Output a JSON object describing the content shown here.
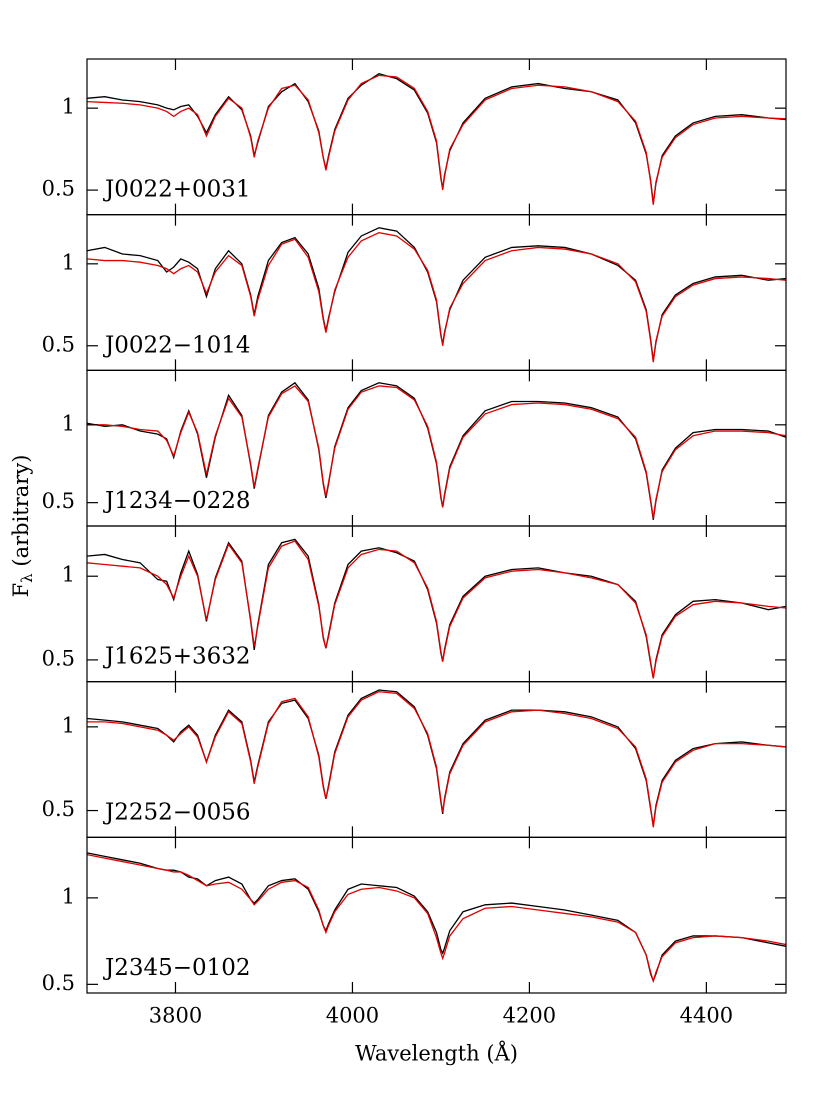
{
  "chart_data": [
    {
      "type": "line",
      "annotation": "J0022+0031",
      "ylabel": [
        "F",
        "λ",
        " (arbitrary)"
      ],
      "x": [
        3700,
        3720,
        3740,
        3760,
        3780,
        3790,
        3798,
        3806,
        3815,
        3825,
        3835,
        3845,
        3860,
        3875,
        3885,
        3889,
        3893,
        3905,
        3920,
        3935,
        3950,
        3962,
        3967,
        3970,
        3973,
        3980,
        3995,
        4010,
        4030,
        4050,
        4070,
        4085,
        4095,
        4100,
        4102,
        4104,
        4110,
        4125,
        4150,
        4180,
        4210,
        4240,
        4270,
        4300,
        4320,
        4332,
        4337,
        4340,
        4343,
        4350,
        4365,
        4385,
        4410,
        4440,
        4470,
        4490
      ],
      "xlim": [
        3700,
        4490
      ],
      "xticks": [
        3800,
        4000,
        4200,
        4400
      ],
      "ylim": [
        0.35,
        1.3
      ],
      "yticks": [
        0.5,
        1
      ],
      "series": [
        {
          "color": "#000000",
          "values": [
            1.06,
            1.07,
            1.05,
            1.04,
            1.02,
            1.0,
            0.99,
            1.01,
            1.02,
            0.95,
            0.85,
            0.96,
            1.07,
            0.99,
            0.83,
            0.71,
            0.79,
            1.01,
            1.1,
            1.15,
            1.04,
            0.86,
            0.7,
            0.63,
            0.71,
            0.87,
            1.06,
            1.14,
            1.21,
            1.18,
            1.11,
            0.97,
            0.79,
            0.57,
            0.51,
            0.59,
            0.74,
            0.91,
            1.06,
            1.13,
            1.15,
            1.12,
            1.1,
            1.05,
            0.91,
            0.72,
            0.56,
            0.42,
            0.54,
            0.71,
            0.83,
            0.91,
            0.95,
            0.96,
            0.94,
            0.93
          ]
        },
        {
          "color": "#e00000",
          "values": [
            1.04,
            1.035,
            1.03,
            1.02,
            1.0,
            0.98,
            0.95,
            0.98,
            1.0,
            0.96,
            0.83,
            0.95,
            1.06,
            1.0,
            0.82,
            0.7,
            0.8,
            1.0,
            1.12,
            1.14,
            1.05,
            0.85,
            0.7,
            0.62,
            0.7,
            0.86,
            1.05,
            1.15,
            1.2,
            1.19,
            1.12,
            0.98,
            0.8,
            0.58,
            0.5,
            0.58,
            0.75,
            0.9,
            1.05,
            1.12,
            1.14,
            1.13,
            1.1,
            1.04,
            0.92,
            0.73,
            0.55,
            0.41,
            0.55,
            0.7,
            0.82,
            0.9,
            0.94,
            0.95,
            0.94,
            0.935
          ]
        }
      ]
    },
    {
      "type": "line",
      "annotation": "J0022−1014",
      "x": [
        3700,
        3720,
        3740,
        3760,
        3780,
        3790,
        3798,
        3806,
        3815,
        3825,
        3835,
        3845,
        3860,
        3875,
        3885,
        3889,
        3893,
        3905,
        3920,
        3935,
        3950,
        3962,
        3967,
        3970,
        3973,
        3980,
        3995,
        4010,
        4030,
        4050,
        4070,
        4085,
        4095,
        4100,
        4102,
        4104,
        4110,
        4125,
        4150,
        4180,
        4210,
        4240,
        4270,
        4300,
        4320,
        4332,
        4337,
        4340,
        4343,
        4350,
        4365,
        4385,
        4410,
        4440,
        4470,
        4490
      ],
      "xlim": [
        3700,
        4490
      ],
      "xticks": [
        3800,
        4000,
        4200,
        4400
      ],
      "ylim": [
        0.35,
        1.3
      ],
      "yticks": [
        0.5,
        1
      ],
      "series": [
        {
          "color": "#000000",
          "values": [
            1.08,
            1.1,
            1.06,
            1.05,
            1.02,
            0.95,
            0.98,
            1.03,
            1.01,
            0.97,
            0.8,
            0.97,
            1.08,
            1.0,
            0.81,
            0.69,
            0.8,
            1.02,
            1.13,
            1.16,
            1.06,
            0.85,
            0.67,
            0.59,
            0.67,
            0.83,
            1.07,
            1.17,
            1.22,
            1.2,
            1.1,
            0.95,
            0.77,
            0.56,
            0.51,
            0.58,
            0.72,
            0.9,
            1.04,
            1.1,
            1.11,
            1.1,
            1.06,
            0.99,
            0.9,
            0.72,
            0.54,
            0.41,
            0.52,
            0.69,
            0.81,
            0.88,
            0.92,
            0.93,
            0.9,
            0.91
          ]
        },
        {
          "color": "#e00000",
          "values": [
            1.03,
            1.02,
            1.02,
            1.01,
            0.99,
            0.97,
            0.94,
            0.97,
            0.99,
            0.95,
            0.82,
            0.95,
            1.05,
            0.99,
            0.8,
            0.68,
            0.78,
            0.99,
            1.12,
            1.15,
            1.04,
            0.83,
            0.66,
            0.58,
            0.66,
            0.84,
            1.04,
            1.14,
            1.19,
            1.17,
            1.09,
            0.96,
            0.78,
            0.57,
            0.5,
            0.57,
            0.73,
            0.88,
            1.02,
            1.08,
            1.1,
            1.09,
            1.06,
            1.0,
            0.89,
            0.71,
            0.53,
            0.4,
            0.53,
            0.68,
            0.8,
            0.87,
            0.91,
            0.92,
            0.91,
            0.9
          ]
        }
      ]
    },
    {
      "type": "line",
      "annotation": "J1234−0228",
      "x": [
        3700,
        3720,
        3740,
        3760,
        3780,
        3790,
        3798,
        3806,
        3815,
        3825,
        3835,
        3845,
        3860,
        3875,
        3885,
        3889,
        3893,
        3905,
        3920,
        3935,
        3950,
        3962,
        3967,
        3970,
        3973,
        3980,
        3995,
        4010,
        4030,
        4050,
        4070,
        4085,
        4095,
        4100,
        4102,
        4104,
        4110,
        4125,
        4150,
        4180,
        4210,
        4240,
        4270,
        4300,
        4320,
        4332,
        4337,
        4340,
        4343,
        4350,
        4365,
        4385,
        4410,
        4440,
        4470,
        4490
      ],
      "xlim": [
        3700,
        4490
      ],
      "xticks": [
        3800,
        4000,
        4200,
        4400
      ],
      "ylim": [
        0.35,
        1.35
      ],
      "yticks": [
        0.5,
        1
      ],
      "series": [
        {
          "color": "#000000",
          "values": [
            1.01,
            0.99,
            1.0,
            0.96,
            0.94,
            0.91,
            0.79,
            0.96,
            1.09,
            0.94,
            0.66,
            0.92,
            1.19,
            1.06,
            0.74,
            0.59,
            0.71,
            1.06,
            1.21,
            1.27,
            1.16,
            0.84,
            0.62,
            0.53,
            0.62,
            0.86,
            1.11,
            1.22,
            1.27,
            1.25,
            1.17,
            0.98,
            0.75,
            0.53,
            0.47,
            0.55,
            0.73,
            0.93,
            1.09,
            1.15,
            1.15,
            1.14,
            1.11,
            1.05,
            0.91,
            0.69,
            0.51,
            0.39,
            0.51,
            0.71,
            0.85,
            0.95,
            0.97,
            0.97,
            0.96,
            0.92
          ]
        },
        {
          "color": "#e00000",
          "values": [
            1.0,
            1.0,
            0.99,
            0.97,
            0.96,
            0.9,
            0.8,
            0.95,
            1.08,
            0.95,
            0.68,
            0.93,
            1.17,
            1.05,
            0.75,
            0.6,
            0.72,
            1.05,
            1.2,
            1.25,
            1.15,
            0.85,
            0.63,
            0.54,
            0.63,
            0.85,
            1.1,
            1.21,
            1.25,
            1.24,
            1.16,
            0.99,
            0.76,
            0.54,
            0.47,
            0.54,
            0.72,
            0.92,
            1.07,
            1.13,
            1.14,
            1.13,
            1.1,
            1.04,
            0.92,
            0.7,
            0.52,
            0.4,
            0.52,
            0.7,
            0.84,
            0.93,
            0.96,
            0.96,
            0.95,
            0.93
          ]
        }
      ]
    },
    {
      "type": "line",
      "annotation": "J1625+3632",
      "x": [
        3700,
        3720,
        3740,
        3760,
        3780,
        3790,
        3798,
        3806,
        3815,
        3825,
        3835,
        3845,
        3860,
        3875,
        3885,
        3889,
        3893,
        3905,
        3920,
        3935,
        3950,
        3962,
        3967,
        3970,
        3973,
        3980,
        3995,
        4010,
        4030,
        4050,
        4070,
        4085,
        4095,
        4100,
        4102,
        4104,
        4110,
        4125,
        4150,
        4180,
        4210,
        4240,
        4270,
        4300,
        4320,
        4332,
        4337,
        4340,
        4343,
        4350,
        4365,
        4385,
        4410,
        4440,
        4470,
        4490
      ],
      "xlim": [
        3700,
        4490
      ],
      "xticks": [
        3800,
        4000,
        4200,
        4400
      ],
      "ylim": [
        0.37,
        1.3
      ],
      "yticks": [
        0.5,
        1
      ],
      "series": [
        {
          "color": "#000000",
          "values": [
            1.12,
            1.13,
            1.1,
            1.08,
            0.98,
            0.97,
            0.86,
            1.02,
            1.15,
            1.01,
            0.73,
            0.99,
            1.2,
            1.09,
            0.73,
            0.56,
            0.71,
            1.07,
            1.2,
            1.22,
            1.12,
            0.83,
            0.63,
            0.57,
            0.65,
            0.84,
            1.07,
            1.15,
            1.17,
            1.14,
            1.09,
            0.92,
            0.72,
            0.54,
            0.49,
            0.56,
            0.71,
            0.88,
            1.0,
            1.04,
            1.05,
            1.02,
            1.0,
            0.95,
            0.85,
            0.64,
            0.48,
            0.39,
            0.5,
            0.65,
            0.77,
            0.85,
            0.86,
            0.84,
            0.8,
            0.82
          ]
        },
        {
          "color": "#e00000",
          "values": [
            1.08,
            1.07,
            1.06,
            1.05,
            1.0,
            0.95,
            0.87,
            1.0,
            1.12,
            1.0,
            0.74,
            0.98,
            1.19,
            1.08,
            0.74,
            0.58,
            0.7,
            1.05,
            1.18,
            1.21,
            1.1,
            0.82,
            0.64,
            0.57,
            0.64,
            0.83,
            1.05,
            1.13,
            1.16,
            1.15,
            1.08,
            0.93,
            0.73,
            0.55,
            0.49,
            0.55,
            0.7,
            0.87,
            0.99,
            1.03,
            1.04,
            1.02,
            0.99,
            0.95,
            0.84,
            0.65,
            0.49,
            0.39,
            0.49,
            0.64,
            0.76,
            0.83,
            0.85,
            0.84,
            0.82,
            0.81
          ]
        }
      ]
    },
    {
      "type": "line",
      "annotation": "J2252−0056",
      "x": [
        3700,
        3720,
        3740,
        3760,
        3780,
        3790,
        3798,
        3806,
        3815,
        3825,
        3835,
        3845,
        3860,
        3875,
        3885,
        3889,
        3893,
        3905,
        3920,
        3935,
        3950,
        3962,
        3967,
        3970,
        3973,
        3980,
        3995,
        4010,
        4030,
        4050,
        4070,
        4085,
        4095,
        4100,
        4102,
        4104,
        4110,
        4125,
        4150,
        4180,
        4210,
        4240,
        4270,
        4300,
        4320,
        4332,
        4337,
        4340,
        4343,
        4350,
        4365,
        4385,
        4410,
        4440,
        4470,
        4490
      ],
      "xlim": [
        3700,
        4490
      ],
      "xticks": [
        3800,
        4000,
        4200,
        4400
      ],
      "ylim": [
        0.34,
        1.27
      ],
      "yticks": [
        0.5,
        1
      ],
      "series": [
        {
          "color": "#000000",
          "values": [
            1.05,
            1.04,
            1.03,
            1.01,
            0.99,
            0.95,
            0.91,
            0.97,
            1.01,
            0.95,
            0.79,
            0.95,
            1.1,
            1.03,
            0.8,
            0.67,
            0.77,
            1.03,
            1.14,
            1.16,
            1.05,
            0.83,
            0.65,
            0.57,
            0.65,
            0.85,
            1.07,
            1.17,
            1.22,
            1.21,
            1.12,
            0.95,
            0.75,
            0.55,
            0.48,
            0.57,
            0.73,
            0.9,
            1.04,
            1.1,
            1.1,
            1.09,
            1.06,
            1.0,
            0.87,
            0.68,
            0.51,
            0.41,
            0.53,
            0.68,
            0.8,
            0.87,
            0.9,
            0.91,
            0.89,
            0.88
          ]
        },
        {
          "color": "#e00000",
          "values": [
            1.03,
            1.03,
            1.02,
            1.0,
            0.98,
            0.95,
            0.92,
            0.96,
            1.0,
            0.94,
            0.79,
            0.94,
            1.09,
            1.02,
            0.79,
            0.66,
            0.76,
            1.02,
            1.15,
            1.17,
            1.06,
            0.82,
            0.64,
            0.57,
            0.64,
            0.84,
            1.06,
            1.16,
            1.21,
            1.2,
            1.11,
            0.96,
            0.76,
            0.56,
            0.49,
            0.56,
            0.72,
            0.89,
            1.03,
            1.09,
            1.1,
            1.08,
            1.05,
            0.99,
            0.88,
            0.69,
            0.52,
            0.4,
            0.52,
            0.67,
            0.79,
            0.86,
            0.9,
            0.9,
            0.89,
            0.88
          ]
        }
      ]
    },
    {
      "type": "line",
      "annotation": "J2345−0102",
      "xlabel": "Wavelength (Å)",
      "x": [
        3700,
        3720,
        3740,
        3760,
        3780,
        3790,
        3798,
        3806,
        3815,
        3825,
        3835,
        3845,
        3860,
        3875,
        3885,
        3889,
        3893,
        3905,
        3920,
        3935,
        3950,
        3962,
        3967,
        3970,
        3973,
        3980,
        3995,
        4010,
        4030,
        4050,
        4070,
        4085,
        4095,
        4100,
        4102,
        4104,
        4110,
        4125,
        4150,
        4180,
        4210,
        4240,
        4270,
        4300,
        4320,
        4332,
        4337,
        4340,
        4343,
        4350,
        4365,
        4385,
        4410,
        4440,
        4470,
        4490
      ],
      "xlim": [
        3700,
        4490
      ],
      "xticks": [
        3800,
        4000,
        4200,
        4400
      ],
      "ylim": [
        0.45,
        1.35
      ],
      "yticks": [
        0.5,
        1
      ],
      "series": [
        {
          "color": "#000000",
          "values": [
            1.26,
            1.24,
            1.22,
            1.2,
            1.17,
            1.16,
            1.16,
            1.15,
            1.12,
            1.11,
            1.07,
            1.1,
            1.12,
            1.08,
            0.99,
            0.97,
            0.99,
            1.07,
            1.1,
            1.11,
            1.05,
            0.92,
            0.84,
            0.81,
            0.85,
            0.93,
            1.05,
            1.08,
            1.07,
            1.06,
            1.01,
            0.92,
            0.8,
            0.7,
            0.68,
            0.71,
            0.81,
            0.92,
            0.96,
            0.97,
            0.95,
            0.93,
            0.9,
            0.87,
            0.8,
            0.67,
            0.56,
            0.52,
            0.56,
            0.67,
            0.75,
            0.78,
            0.78,
            0.77,
            0.74,
            0.72
          ]
        },
        {
          "color": "#e00000",
          "values": [
            1.25,
            1.23,
            1.21,
            1.19,
            1.17,
            1.16,
            1.15,
            1.15,
            1.13,
            1.1,
            1.07,
            1.08,
            1.09,
            1.05,
            0.99,
            0.96,
            0.98,
            1.05,
            1.09,
            1.1,
            1.06,
            0.93,
            0.84,
            0.8,
            0.84,
            0.92,
            1.02,
            1.05,
            1.06,
            1.04,
            1.0,
            0.91,
            0.77,
            0.68,
            0.65,
            0.68,
            0.78,
            0.88,
            0.94,
            0.95,
            0.93,
            0.91,
            0.89,
            0.86,
            0.8,
            0.67,
            0.57,
            0.52,
            0.57,
            0.66,
            0.74,
            0.77,
            0.78,
            0.77,
            0.75,
            0.73
          ]
        }
      ]
    }
  ]
}
